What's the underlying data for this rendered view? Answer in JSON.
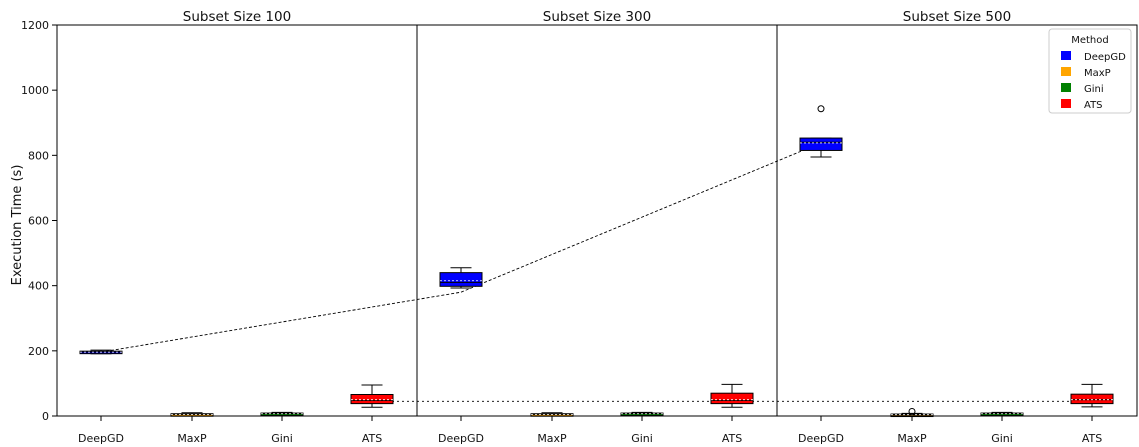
{
  "chart_data": {
    "type": "box",
    "ylabel": "Execution Time (s)",
    "ylim": [
      0,
      1200
    ],
    "yticks": [
      0,
      200,
      400,
      600,
      800,
      1000,
      1200
    ],
    "categories": [
      "DeepGD",
      "MaxP",
      "Gini",
      "ATS"
    ],
    "legend": {
      "title": "Method",
      "position": "top-right",
      "items": [
        {
          "label": "DeepGD",
          "color": "#0000ff"
        },
        {
          "label": "MaxP",
          "color": "#ffa500"
        },
        {
          "label": "Gini",
          "color": "#008000"
        },
        {
          "label": "ATS",
          "color": "#ff0000"
        }
      ]
    },
    "panels": [
      {
        "title": "Subset Size 100",
        "boxes": [
          {
            "category": "DeepGD",
            "whislo": 191,
            "q1": 193,
            "med": 196,
            "q3": 199,
            "whishi": 202,
            "mean": 196,
            "fliers": []
          },
          {
            "category": "MaxP",
            "whislo": 2,
            "q1": 3,
            "med": 5,
            "q3": 7,
            "whishi": 10,
            "mean": 5,
            "fliers": []
          },
          {
            "category": "Gini",
            "whislo": 3,
            "q1": 5,
            "med": 7,
            "q3": 9,
            "whishi": 11,
            "mean": 7,
            "fliers": []
          },
          {
            "category": "ATS",
            "whislo": 27,
            "q1": 38,
            "med": 48,
            "q3": 66,
            "whishi": 95,
            "mean": 50,
            "fliers": []
          }
        ]
      },
      {
        "title": "Subset Size 300",
        "boxes": [
          {
            "category": "DeepGD",
            "whislo": 393,
            "q1": 398,
            "med": 410,
            "q3": 440,
            "whishi": 455,
            "mean": 415,
            "fliers": []
          },
          {
            "category": "MaxP",
            "whislo": 2,
            "q1": 3,
            "med": 5,
            "q3": 7,
            "whishi": 10,
            "mean": 5,
            "fliers": []
          },
          {
            "category": "Gini",
            "whislo": 3,
            "q1": 5,
            "med": 7,
            "q3": 9,
            "whishi": 11,
            "mean": 7,
            "fliers": []
          },
          {
            "category": "ATS",
            "whislo": 27,
            "q1": 38,
            "med": 48,
            "q3": 70,
            "whishi": 97,
            "mean": 50,
            "fliers": []
          }
        ]
      },
      {
        "title": "Subset Size 500",
        "boxes": [
          {
            "category": "DeepGD",
            "whislo": 795,
            "q1": 815,
            "med": 840,
            "q3": 853,
            "whishi": 853,
            "mean": 838,
            "fliers": [
              943
            ]
          },
          {
            "category": "MaxP",
            "whislo": 1,
            "q1": 2,
            "med": 4,
            "q3": 6,
            "whishi": 8,
            "mean": 4,
            "fliers": [
              14
            ]
          },
          {
            "category": "Gini",
            "whislo": 3,
            "q1": 5,
            "med": 7,
            "q3": 9,
            "whishi": 11,
            "mean": 7,
            "fliers": []
          },
          {
            "category": "ATS",
            "whislo": 28,
            "q1": 38,
            "med": 50,
            "q3": 67,
            "whishi": 97,
            "mean": 50,
            "fliers": []
          }
        ]
      }
    ],
    "trend_lines": [
      {
        "method": "DeepGD",
        "style": "dashed",
        "values": [
          196,
          380,
          838
        ]
      },
      {
        "method": "ATS",
        "style": "dotted",
        "values": [
          45,
          45,
          45
        ]
      }
    ]
  }
}
